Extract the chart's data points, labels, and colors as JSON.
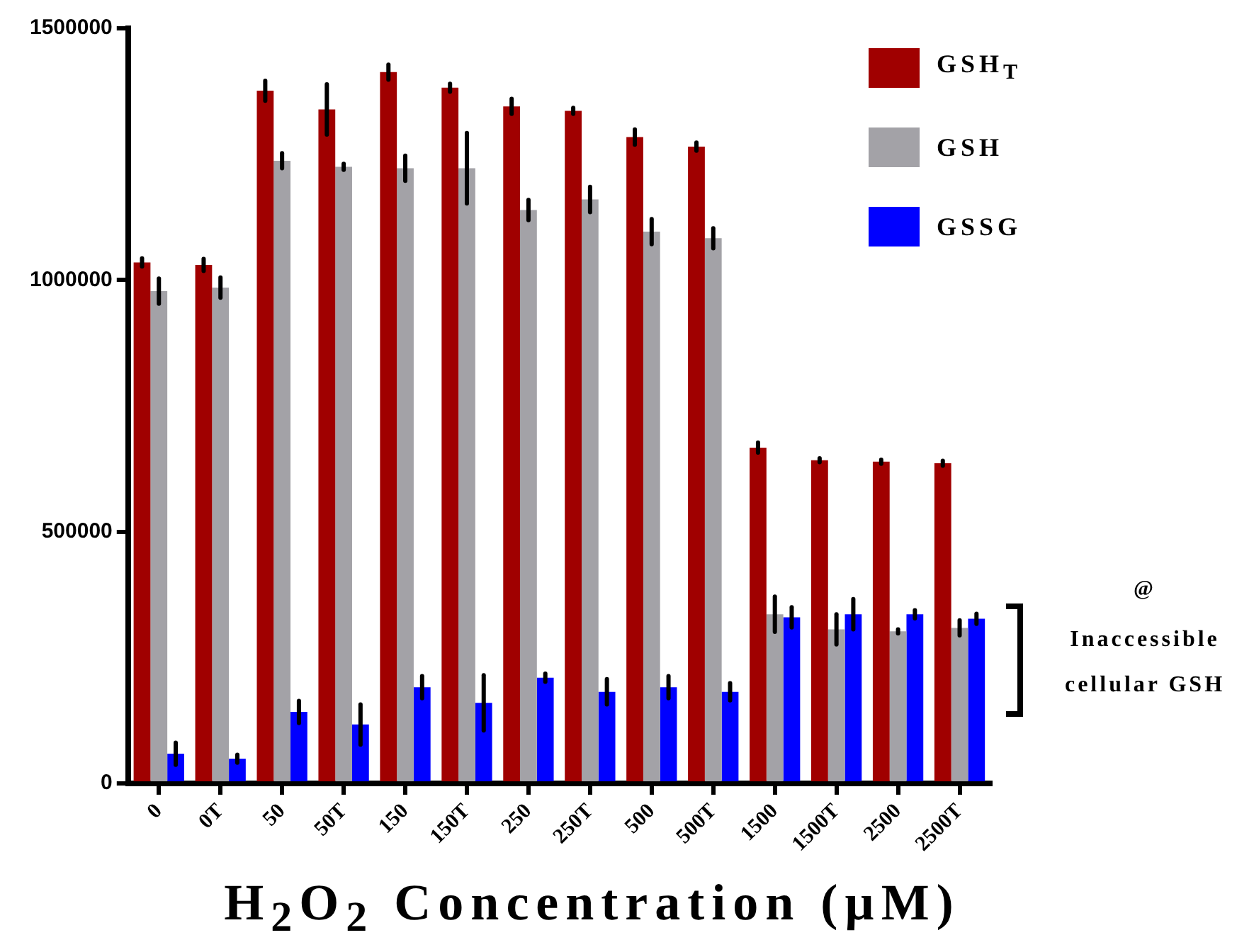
{
  "chart_data": {
    "type": "bar",
    "xlabel": "H$_{2}$O$_{2}$ Concentration (µM)",
    "categories": [
      "0",
      "0T",
      "50",
      "50T",
      "150",
      "150T",
      "250",
      "250T",
      "500",
      "500T",
      "1500",
      "1500T",
      "2500",
      "2500T"
    ],
    "series": [
      {
        "name": "GSH$_{T}$",
        "color": "#a00000",
        "values": [
          1035000,
          1030000,
          1376000,
          1339000,
          1413000,
          1382000,
          1345000,
          1336000,
          1284000,
          1265000,
          667000,
          642000,
          639000,
          636000
        ],
        "errors": [
          8000,
          12000,
          20000,
          50000,
          15000,
          8000,
          15000,
          6000,
          15000,
          8000,
          10000,
          4000,
          4000,
          5000
        ]
      },
      {
        "name": "GSH",
        "color": "#a3a2a7",
        "values": [
          978000,
          985000,
          1237000,
          1225000,
          1222000,
          1222000,
          1139000,
          1160000,
          1096000,
          1083000,
          336000,
          306000,
          302000,
          309000
        ],
        "errors": [
          25000,
          20000,
          15000,
          6000,
          25000,
          70000,
          20000,
          25000,
          25000,
          20000,
          35000,
          30000,
          4000,
          15000
        ]
      },
      {
        "name": "GSSG",
        "color": "#0000ff",
        "values": [
          59000,
          49000,
          142000,
          117000,
          191000,
          160000,
          210000,
          182000,
          191000,
          182000,
          330000,
          336000,
          336000,
          327000
        ],
        "errors": [
          22000,
          8000,
          22000,
          40000,
          22000,
          55000,
          8000,
          25000,
          22000,
          17000,
          20000,
          30000,
          8000,
          10000
        ]
      }
    ],
    "ylim": [
      0,
      1500000
    ],
    "yticks": [
      0,
      500000,
      1000000,
      1500000
    ],
    "grid": false,
    "legend": "top right",
    "annotations": [
      "@",
      "Inaccessible cellular GSH"
    ]
  }
}
